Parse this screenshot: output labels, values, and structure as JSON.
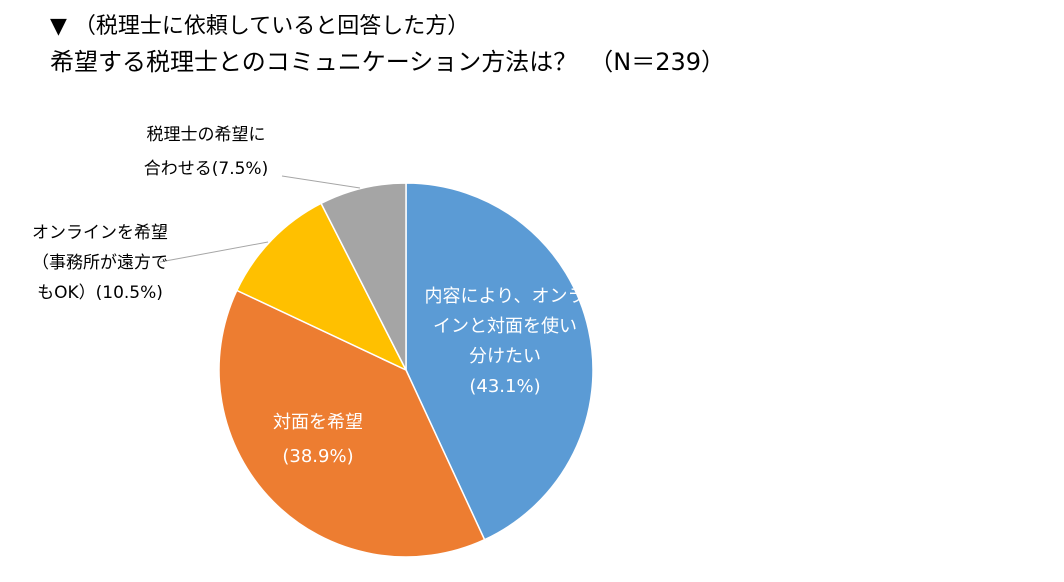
{
  "header": {
    "subtitle": "▼ （税理士に依頼していると回答した方）",
    "title": "希望する税理士とのコミュニケーション方法は？　（N＝239）"
  },
  "chart_data": {
    "type": "pie",
    "total_n": 239,
    "slices": [
      {
        "label_lines": [
          "内容により、オンラ",
          "インと対面を使い",
          "分けたい",
          "(43.1%)"
        ],
        "value": 43.1,
        "color": "#5B9BD5"
      },
      {
        "label_lines": [
          "対面を希望",
          "(38.9%)"
        ],
        "value": 38.9,
        "color": "#ED7D31"
      },
      {
        "label_lines": [
          "オンラインを希望",
          "（事務所が遠方で",
          "もOK）(10.5%)"
        ],
        "value": 10.5,
        "color": "#FFC000"
      },
      {
        "label_lines": [
          "税理士の希望に",
          "合わせる(7.5%)"
        ],
        "value": 7.5,
        "color": "#A5A5A5"
      }
    ]
  }
}
